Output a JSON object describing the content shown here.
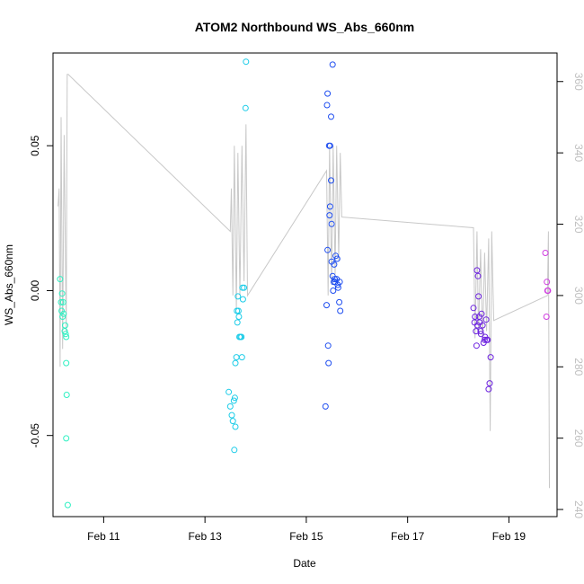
{
  "chart_data": {
    "type": "scatter",
    "title": "ATOM2 Northbound WS_Abs_660nm",
    "xlabel": "Date",
    "ylabel": "WS_Abs_660nm",
    "x_unit": "days in February",
    "xlim": [
      10.0,
      19.95
    ],
    "ylim": [
      -0.078,
      0.082
    ],
    "x_ticks": [
      {
        "v": 11,
        "label": "Feb 11"
      },
      {
        "v": 13,
        "label": "Feb 13"
      },
      {
        "v": 15,
        "label": "Feb 15"
      },
      {
        "v": 17,
        "label": "Feb 17"
      },
      {
        "v": 19,
        "label": "Feb 19"
      }
    ],
    "y_ticks": [
      {
        "v": -0.05,
        "label": "-0.05"
      },
      {
        "v": 0.0,
        "label": "0.00"
      },
      {
        "v": 0.05,
        "label": "0.05"
      }
    ],
    "y2lim": [
      238,
      368
    ],
    "y2_ticks": [
      240,
      260,
      280,
      300,
      320,
      340,
      360
    ],
    "grid": false,
    "legend": "none",
    "line_color": "#c8c8c8",
    "series": [
      {
        "color": "#2ff0c2",
        "points": [
          [
            10.14,
            0.004
          ],
          [
            10.16,
            -0.004
          ],
          [
            10.17,
            -0.007
          ],
          [
            10.18,
            -0.001
          ],
          [
            10.19,
            -0.009
          ],
          [
            10.2,
            -0.004
          ],
          [
            10.21,
            -0.008
          ],
          [
            10.23,
            -0.014
          ],
          [
            10.24,
            -0.012
          ],
          [
            10.25,
            -0.015
          ],
          [
            10.26,
            -0.016
          ],
          [
            10.26,
            -0.025
          ],
          [
            10.27,
            -0.036
          ],
          [
            10.26,
            -0.051
          ],
          [
            10.29,
            -0.074
          ]
        ]
      },
      {
        "color": "#1ccce8",
        "points": [
          [
            13.47,
            -0.035
          ],
          [
            13.5,
            -0.04
          ],
          [
            13.53,
            -0.043
          ],
          [
            13.55,
            -0.045
          ],
          [
            13.57,
            -0.038
          ],
          [
            13.59,
            -0.037
          ],
          [
            13.6,
            -0.047
          ],
          [
            13.58,
            -0.055
          ],
          [
            13.6,
            -0.025
          ],
          [
            13.62,
            -0.023
          ],
          [
            13.63,
            -0.007
          ],
          [
            13.64,
            -0.011
          ],
          [
            13.65,
            -0.002
          ],
          [
            13.66,
            -0.007
          ],
          [
            13.67,
            -0.009
          ],
          [
            13.68,
            -0.016
          ],
          [
            13.7,
            -0.016
          ],
          [
            13.72,
            -0.016
          ],
          [
            13.73,
            -0.023
          ],
          [
            13.74,
            0.001
          ],
          [
            13.75,
            -0.003
          ],
          [
            13.77,
            0.001
          ],
          [
            13.8,
            0.063
          ],
          [
            13.81,
            0.079
          ]
        ]
      },
      {
        "color": "#1f4ef0",
        "points": [
          [
            15.38,
            -0.04
          ],
          [
            15.4,
            -0.005
          ],
          [
            15.42,
            0.014
          ],
          [
            15.43,
            -0.019
          ],
          [
            15.44,
            -0.025
          ],
          [
            15.42,
            0.068
          ],
          [
            15.41,
            0.064
          ],
          [
            15.45,
            0.05
          ],
          [
            15.47,
            0.05
          ],
          [
            15.46,
            0.026
          ],
          [
            15.47,
            0.029
          ],
          [
            15.49,
            0.038
          ],
          [
            15.5,
            0.023
          ],
          [
            15.49,
            0.06
          ],
          [
            15.52,
            0.078
          ],
          [
            15.5,
            0.01
          ],
          [
            15.52,
            0.005
          ],
          [
            15.53,
            0.0
          ],
          [
            15.54,
            0.003
          ],
          [
            15.55,
            0.009
          ],
          [
            15.56,
            0.004
          ],
          [
            15.57,
            0.003
          ],
          [
            15.58,
            0.012
          ],
          [
            15.6,
            0.004
          ],
          [
            15.61,
            0.011
          ],
          [
            15.62,
            0.002
          ],
          [
            15.63,
            0.001
          ],
          [
            15.65,
            -0.004
          ],
          [
            15.66,
            0.003
          ],
          [
            15.67,
            -0.007
          ]
        ]
      },
      {
        "color": "#6d22e0",
        "points": [
          [
            18.3,
            -0.006
          ],
          [
            18.32,
            -0.011
          ],
          [
            18.33,
            -0.009
          ],
          [
            18.35,
            -0.014
          ],
          [
            18.36,
            -0.019
          ],
          [
            18.38,
            -0.012
          ],
          [
            18.37,
            0.007
          ],
          [
            18.39,
            0.005
          ],
          [
            18.4,
            -0.002
          ],
          [
            18.41,
            -0.009
          ],
          [
            18.42,
            -0.011
          ],
          [
            18.44,
            -0.014
          ],
          [
            18.45,
            -0.015
          ],
          [
            18.46,
            -0.008
          ],
          [
            18.48,
            -0.012
          ],
          [
            18.5,
            -0.018
          ],
          [
            18.52,
            -0.017
          ],
          [
            18.53,
            -0.016
          ],
          [
            18.55,
            -0.01
          ],
          [
            18.56,
            -0.017
          ],
          [
            18.58,
            -0.017
          ],
          [
            18.6,
            -0.034
          ],
          [
            18.62,
            -0.032
          ],
          [
            18.64,
            -0.023
          ]
        ]
      },
      {
        "color": "#d03ce0",
        "points": [
          [
            19.72,
            0.013
          ],
          [
            19.74,
            -0.009
          ],
          [
            19.75,
            0.003
          ],
          [
            19.76,
            0.0
          ],
          [
            19.77,
            0.0
          ]
        ]
      }
    ],
    "line_y2": [
      [
        10.1,
        325
      ],
      [
        10.12,
        330
      ],
      [
        10.14,
        280
      ],
      [
        10.16,
        350
      ],
      [
        10.19,
        285
      ],
      [
        10.22,
        345
      ],
      [
        10.26,
        290
      ],
      [
        10.28,
        362
      ],
      [
        10.3,
        362
      ],
      [
        13.5,
        318
      ],
      [
        13.52,
        330
      ],
      [
        13.55,
        300
      ],
      [
        13.58,
        342
      ],
      [
        13.62,
        296
      ],
      [
        13.65,
        340
      ],
      [
        13.69,
        300
      ],
      [
        13.73,
        342
      ],
      [
        13.77,
        304
      ],
      [
        13.81,
        348
      ],
      [
        13.84,
        300
      ],
      [
        15.4,
        335
      ],
      [
        15.43,
        300
      ],
      [
        15.46,
        342
      ],
      [
        15.5,
        303
      ],
      [
        15.53,
        342
      ],
      [
        15.57,
        306
      ],
      [
        15.6,
        342
      ],
      [
        15.64,
        310
      ],
      [
        15.67,
        340
      ],
      [
        15.7,
        322
      ],
      [
        18.3,
        319
      ],
      [
        18.33,
        288
      ],
      [
        18.37,
        318
      ],
      [
        18.4,
        289
      ],
      [
        18.44,
        313
      ],
      [
        18.48,
        287
      ],
      [
        18.52,
        312
      ],
      [
        18.56,
        290
      ],
      [
        18.6,
        316
      ],
      [
        18.63,
        262
      ],
      [
        18.66,
        318
      ],
      [
        18.7,
        293
      ],
      [
        19.76,
        300
      ],
      [
        19.78,
        318
      ],
      [
        19.8,
        246
      ]
    ]
  }
}
